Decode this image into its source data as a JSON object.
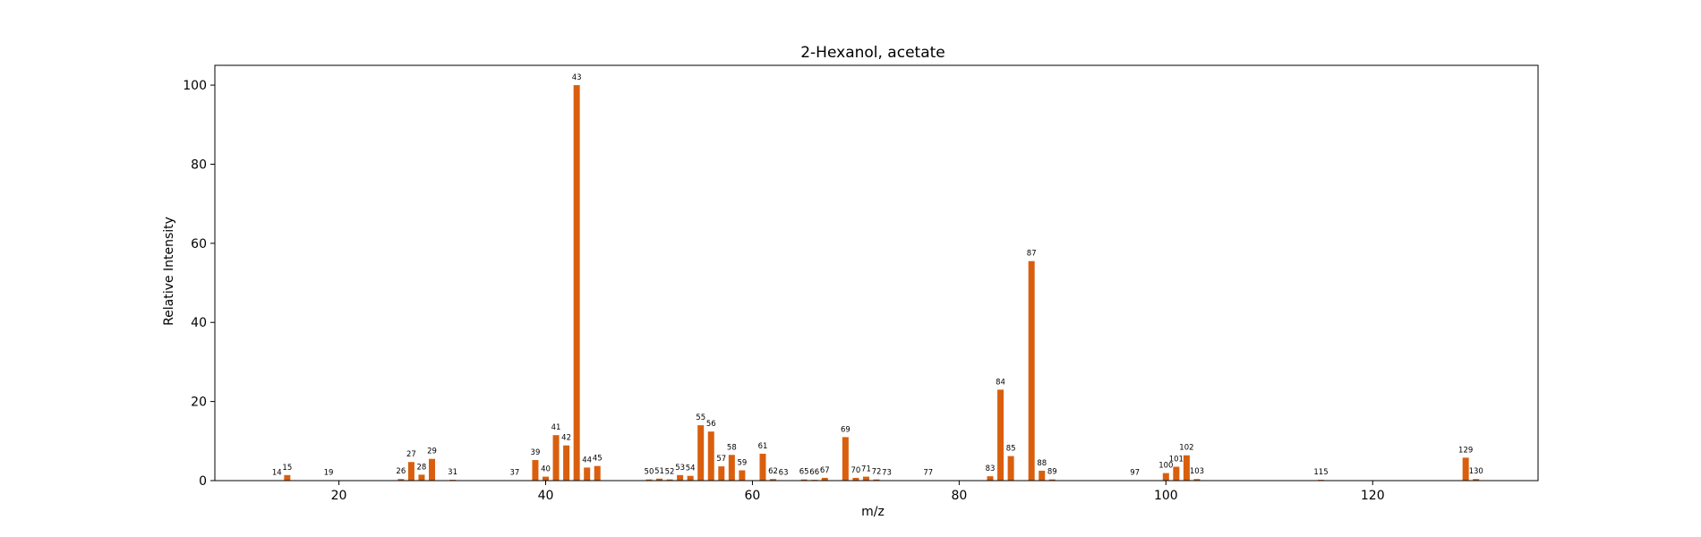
{
  "chart_data": {
    "type": "bar",
    "title": "2-Hexanol, acetate",
    "xlabel": "m/z",
    "ylabel": "Relative Intensity",
    "xlim": [
      8,
      136
    ],
    "ylim": [
      0,
      105
    ],
    "xticks": [
      20,
      40,
      60,
      80,
      100,
      120
    ],
    "yticks": [
      0,
      20,
      40,
      60,
      80,
      100
    ],
    "bar_color": "#d95f0e",
    "grid": false,
    "x": [
      14,
      15,
      19,
      26,
      27,
      28,
      29,
      31,
      37,
      39,
      40,
      41,
      42,
      43,
      44,
      45,
      50,
      51,
      52,
      53,
      54,
      55,
      56,
      57,
      58,
      59,
      61,
      62,
      63,
      65,
      66,
      67,
      69,
      70,
      71,
      72,
      73,
      77,
      83,
      84,
      85,
      87,
      88,
      89,
      97,
      100,
      101,
      102,
      103,
      115,
      129,
      130
    ],
    "values": [
      0.1,
      1.4,
      0.1,
      0.4,
      4.7,
      1.5,
      5.5,
      0.2,
      0.1,
      5.2,
      1.0,
      11.5,
      8.9,
      100.0,
      3.3,
      3.7,
      0.3,
      0.5,
      0.3,
      1.4,
      1.2,
      14.0,
      12.4,
      3.6,
      6.5,
      2.6,
      6.8,
      0.4,
      0.1,
      0.3,
      0.2,
      0.7,
      11.0,
      0.7,
      1.0,
      0.3,
      0.1,
      0.1,
      1.1,
      23.0,
      6.2,
      55.5,
      2.5,
      0.3,
      0.1,
      1.9,
      3.5,
      6.4,
      0.4,
      0.2,
      5.8,
      0.4
    ],
    "labels": [
      "14",
      "15",
      "19",
      "26",
      "27",
      "28",
      "29",
      "31",
      "37",
      "39",
      "40",
      "41",
      "42",
      "43",
      "44",
      "45",
      "50",
      "51",
      "52",
      "53",
      "54",
      "55",
      "56",
      "57",
      "58",
      "59",
      "61",
      "62",
      "63",
      "65",
      "66",
      "67",
      "69",
      "70",
      "71",
      "72",
      "73",
      "77",
      "83",
      "84",
      "85",
      "87",
      "88",
      "89",
      "97",
      "100",
      "101",
      "102",
      "103",
      "115",
      "129",
      "130"
    ]
  }
}
